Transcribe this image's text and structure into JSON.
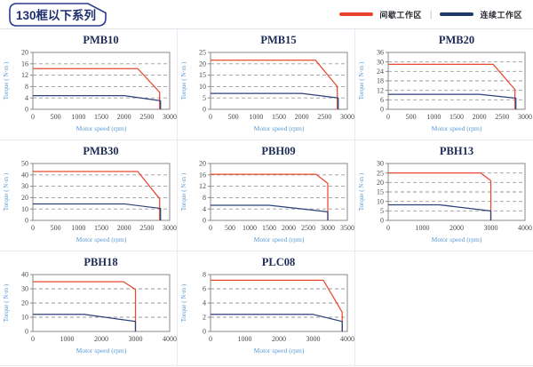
{
  "header": {
    "title": "130框以下系列"
  },
  "legend": {
    "separator": "|",
    "items": [
      {
        "label": "间歇工作区",
        "color": "#e8432b"
      },
      {
        "label": "连续工作区",
        "color": "#1f3968"
      }
    ]
  },
  "colors": {
    "intermittent": "#e8492f",
    "continuous": "#2b4178",
    "grid_line": "#9a9aa0",
    "plot_border": "#8a8a8a",
    "axis_label": "#5b9bd5",
    "tick_label": "#4a4a4a",
    "title_text": "#1c2b55",
    "header_box_border": "#2b3a8c"
  },
  "chart_data": [
    {
      "type": "line",
      "title": "PMB10",
      "xlabel": "Motor speed (rpm)",
      "ylabel": "Torque ( N·m )",
      "xlim": [
        0,
        3000
      ],
      "xtick_step": 500,
      "ylim": [
        0,
        20
      ],
      "ytick_step": 4,
      "series": [
        {
          "name": "间歇工作区",
          "color": "intermittent",
          "points": [
            [
              0,
              14.3
            ],
            [
              2300,
              14.3
            ],
            [
              2780,
              6
            ],
            [
              2780,
              0
            ]
          ]
        },
        {
          "name": "连续工作区",
          "color": "continuous",
          "points": [
            [
              0,
              4.8
            ],
            [
              2000,
              4.8
            ],
            [
              2800,
              3
            ],
            [
              2800,
              0
            ]
          ]
        }
      ]
    },
    {
      "type": "line",
      "title": "PMB15",
      "xlabel": "Motor speed (rpm)",
      "ylabel": "Torque ( N·m )",
      "xlim": [
        0,
        3000
      ],
      "xtick_step": 500,
      "ylim": [
        0,
        25
      ],
      "ytick_step": 5,
      "series": [
        {
          "name": "间歇工作区",
          "color": "intermittent",
          "points": [
            [
              0,
              21.6
            ],
            [
              2300,
              21.6
            ],
            [
              2780,
              10
            ],
            [
              2780,
              0
            ]
          ]
        },
        {
          "name": "连续工作区",
          "color": "continuous",
          "points": [
            [
              0,
              7
            ],
            [
              2000,
              7
            ],
            [
              2800,
              5
            ],
            [
              2800,
              0
            ]
          ]
        }
      ]
    },
    {
      "type": "line",
      "title": "PMB20",
      "xlabel": "Motor speed (rpm)",
      "ylabel": "Torque ( N·m )",
      "xlim": [
        0,
        3000
      ],
      "xtick_step": 500,
      "ylim": [
        0,
        36
      ],
      "ytick_step": 6,
      "series": [
        {
          "name": "间歇工作区",
          "color": "intermittent",
          "points": [
            [
              0,
              28.5
            ],
            [
              2300,
              28.5
            ],
            [
              2780,
              12.5
            ],
            [
              2780,
              0
            ]
          ]
        },
        {
          "name": "连续工作区",
          "color": "continuous",
          "points": [
            [
              0,
              9.5
            ],
            [
              2000,
              9.5
            ],
            [
              2800,
              7
            ],
            [
              2800,
              0
            ]
          ]
        }
      ]
    },
    {
      "type": "line",
      "title": "PMB30",
      "xlabel": "Motor speed (rpm)",
      "ylabel": "Torque ( N·m )",
      "xlim": [
        0,
        3000
      ],
      "xtick_step": 500,
      "ylim": [
        0,
        50
      ],
      "ytick_step": 10,
      "series": [
        {
          "name": "间歇工作区",
          "color": "intermittent",
          "points": [
            [
              0,
              43
            ],
            [
              2300,
              43
            ],
            [
              2780,
              19
            ],
            [
              2780,
              0
            ]
          ]
        },
        {
          "name": "连续工作区",
          "color": "continuous",
          "points": [
            [
              0,
              14.5
            ],
            [
              2000,
              14.5
            ],
            [
              2800,
              10.5
            ],
            [
              2800,
              0
            ]
          ]
        }
      ]
    },
    {
      "type": "line",
      "title": "PBH09",
      "xlabel": "Motor speed (rpm)",
      "ylabel": "Torque ( N·m )",
      "xlim": [
        0,
        3500
      ],
      "xtick_step": 500,
      "ylim": [
        0,
        20
      ],
      "ytick_step": 4,
      "series": [
        {
          "name": "间歇工作区",
          "color": "intermittent",
          "points": [
            [
              0,
              16.2
            ],
            [
              2700,
              16.2
            ],
            [
              3000,
              13
            ],
            [
              3000,
              0
            ]
          ]
        },
        {
          "name": "连续工作区",
          "color": "continuous",
          "points": [
            [
              0,
              5.3
            ],
            [
              1500,
              5.3
            ],
            [
              3000,
              3
            ],
            [
              3000,
              0
            ]
          ]
        }
      ]
    },
    {
      "type": "line",
      "title": "PBH13",
      "xlabel": "Motor speed (rpm)",
      "ylabel": "Torque ( N·m )",
      "xlim": [
        0,
        4000
      ],
      "xtick_step": 1000,
      "ylim": [
        0,
        30
      ],
      "ytick_step": 5,
      "series": [
        {
          "name": "间歇工作区",
          "color": "intermittent",
          "points": [
            [
              0,
              25
            ],
            [
              2700,
              25
            ],
            [
              3000,
              21
            ],
            [
              3000,
              0
            ]
          ]
        },
        {
          "name": "连续工作区",
          "color": "continuous",
          "points": [
            [
              0,
              8.2
            ],
            [
              1500,
              8.2
            ],
            [
              3000,
              5
            ],
            [
              3000,
              0
            ]
          ]
        }
      ]
    },
    {
      "type": "line",
      "title": "PBH18",
      "xlabel": "Motor speed (rpm)",
      "ylabel": "Torque ( N·m )",
      "xlim": [
        0,
        4000
      ],
      "xtick_step": 1000,
      "ylim": [
        0,
        40
      ],
      "ytick_step": 10,
      "series": [
        {
          "name": "间歇工作区",
          "color": "intermittent",
          "points": [
            [
              0,
              35
            ],
            [
              2650,
              35
            ],
            [
              3000,
              29.5
            ],
            [
              3000,
              0
            ]
          ]
        },
        {
          "name": "连续工作区",
          "color": "continuous",
          "points": [
            [
              0,
              12
            ],
            [
              1500,
              12
            ],
            [
              3000,
              7
            ],
            [
              3000,
              0
            ]
          ]
        }
      ]
    },
    {
      "type": "line",
      "title": "PLC08",
      "xlabel": "Motor speed (rpm)",
      "ylabel": "Torque ( N·m )",
      "xlim": [
        0,
        4000
      ],
      "xtick_step": 1000,
      "ylim": [
        0,
        8
      ],
      "ytick_step": 2,
      "series": [
        {
          "name": "间歇工作区",
          "color": "intermittent",
          "points": [
            [
              0,
              7.2
            ],
            [
              3300,
              7.2
            ],
            [
              3850,
              2.7
            ],
            [
              3850,
              0
            ]
          ]
        },
        {
          "name": "连续工作区",
          "color": "continuous",
          "points": [
            [
              0,
              2.4
            ],
            [
              3000,
              2.4
            ],
            [
              3850,
              1.4
            ],
            [
              3850,
              0
            ]
          ]
        }
      ]
    }
  ]
}
